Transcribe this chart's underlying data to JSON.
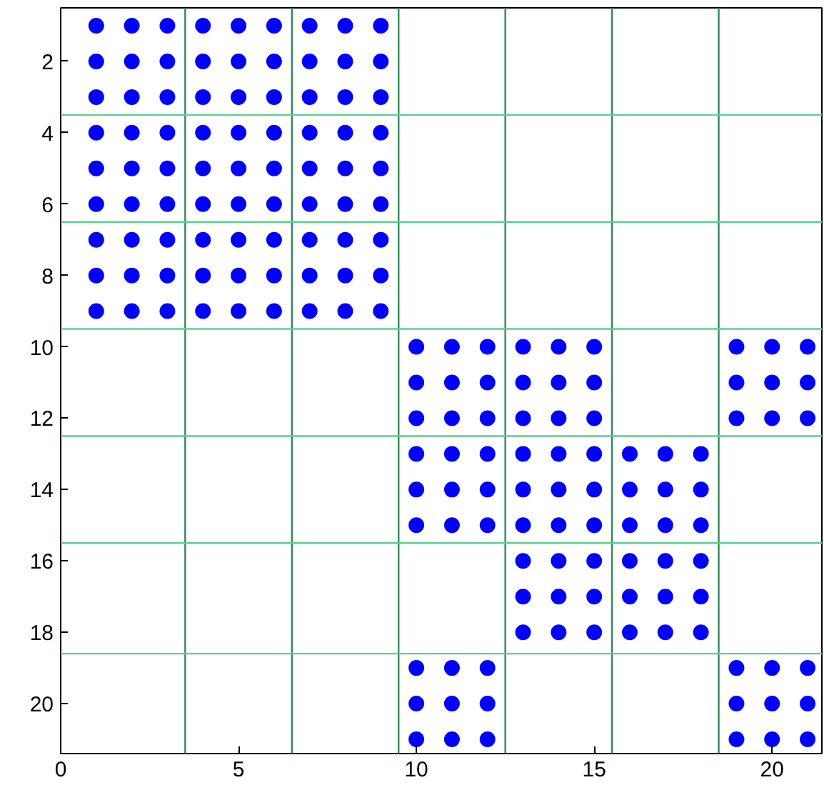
{
  "chart_data": {
    "type": "scatter",
    "marker": "circle",
    "grid": false,
    "xlim": [
      0,
      21.4
    ],
    "ylim": [
      21.4,
      0.5
    ],
    "xticks": [
      0,
      5,
      10,
      15,
      20
    ],
    "yticks": [
      2,
      4,
      6,
      8,
      10,
      12,
      14,
      16,
      18,
      20
    ],
    "series": [
      {
        "color": "#0000ff",
        "x": [
          1,
          2,
          3,
          4,
          5,
          6,
          7,
          8,
          9
        ],
        "values": [
          1,
          1,
          1,
          1,
          1,
          1,
          1,
          1,
          1
        ]
      },
      {
        "color": "#0000ff",
        "x": [
          1,
          2,
          3,
          4,
          5,
          6,
          7,
          8,
          9
        ],
        "values": [
          2,
          2,
          2,
          2,
          2,
          2,
          2,
          2,
          2
        ]
      },
      {
        "color": "#0000ff",
        "x": [
          1,
          2,
          3,
          4,
          5,
          6,
          7,
          8,
          9
        ],
        "values": [
          3,
          3,
          3,
          3,
          3,
          3,
          3,
          3,
          3
        ]
      },
      {
        "color": "#0000ff",
        "x": [
          1,
          2,
          3,
          4,
          5,
          6,
          7,
          8,
          9
        ],
        "values": [
          4,
          4,
          4,
          4,
          4,
          4,
          4,
          4,
          4
        ]
      },
      {
        "color": "#0000ff",
        "x": [
          1,
          2,
          3,
          4,
          5,
          6,
          7,
          8,
          9
        ],
        "values": [
          5,
          5,
          5,
          5,
          5,
          5,
          5,
          5,
          5
        ]
      },
      {
        "color": "#0000ff",
        "x": [
          1,
          2,
          3,
          4,
          5,
          6,
          7,
          8,
          9
        ],
        "values": [
          6,
          6,
          6,
          6,
          6,
          6,
          6,
          6,
          6
        ]
      },
      {
        "color": "#0000ff",
        "x": [
          1,
          2,
          3,
          4,
          5,
          6,
          7,
          8,
          9
        ],
        "values": [
          7,
          7,
          7,
          7,
          7,
          7,
          7,
          7,
          7
        ]
      },
      {
        "color": "#0000ff",
        "x": [
          1,
          2,
          3,
          4,
          5,
          6,
          7,
          8,
          9
        ],
        "values": [
          8,
          8,
          8,
          8,
          8,
          8,
          8,
          8,
          8
        ]
      },
      {
        "color": "#0000ff",
        "x": [
          1,
          2,
          3,
          4,
          5,
          6,
          7,
          8,
          9
        ],
        "values": [
          9,
          9,
          9,
          9,
          9,
          9,
          9,
          9,
          9
        ]
      },
      {
        "color": "#0000ff",
        "x": [
          10,
          11,
          12,
          13,
          14,
          15,
          19,
          20,
          21
        ],
        "values": [
          10,
          10,
          10,
          10,
          10,
          10,
          10,
          10,
          10
        ]
      },
      {
        "color": "#0000ff",
        "x": [
          10,
          11,
          12,
          13,
          14,
          15,
          19,
          20,
          21
        ],
        "values": [
          11,
          11,
          11,
          11,
          11,
          11,
          11,
          11,
          11
        ]
      },
      {
        "color": "#0000ff",
        "x": [
          10,
          11,
          12,
          13,
          14,
          15,
          19,
          20,
          21
        ],
        "values": [
          12,
          12,
          12,
          12,
          12,
          12,
          12,
          12,
          12
        ]
      },
      {
        "color": "#0000ff",
        "x": [
          10,
          11,
          12,
          13,
          14,
          15,
          16,
          17,
          18
        ],
        "values": [
          13,
          13,
          13,
          13,
          13,
          13,
          13,
          13,
          13
        ]
      },
      {
        "color": "#0000ff",
        "x": [
          10,
          11,
          12,
          13,
          14,
          15,
          16,
          17,
          18
        ],
        "values": [
          14,
          14,
          14,
          14,
          14,
          14,
          14,
          14,
          14
        ]
      },
      {
        "color": "#0000ff",
        "x": [
          10,
          11,
          12,
          13,
          14,
          15,
          16,
          17,
          18
        ],
        "values": [
          15,
          15,
          15,
          15,
          15,
          15,
          15,
          15,
          15
        ]
      },
      {
        "color": "#0000ff",
        "x": [
          13,
          14,
          15,
          16,
          17,
          18
        ],
        "values": [
          16,
          16,
          16,
          16,
          16,
          16
        ]
      },
      {
        "color": "#0000ff",
        "x": [
          13,
          14,
          15,
          16,
          17,
          18
        ],
        "values": [
          17,
          17,
          17,
          17,
          17,
          17
        ]
      },
      {
        "color": "#0000ff",
        "x": [
          13,
          14,
          15,
          16,
          17,
          18
        ],
        "values": [
          18,
          18,
          18,
          18,
          18,
          18
        ]
      },
      {
        "color": "#0000ff",
        "x": [
          10,
          11,
          12,
          19,
          20,
          21
        ],
        "values": [
          19,
          19,
          19,
          19,
          19,
          19
        ]
      },
      {
        "color": "#0000ff",
        "x": [
          10,
          11,
          12,
          19,
          20,
          21
        ],
        "values": [
          20,
          20,
          20,
          20,
          20,
          20
        ]
      },
      {
        "color": "#0000ff",
        "x": [
          10,
          11,
          12,
          19,
          20,
          21
        ],
        "values": [
          21,
          21,
          21,
          21,
          21,
          21
        ]
      }
    ],
    "ref_lines": [
      {
        "axis": "x",
        "value": 3.5,
        "color": "#2e8b57"
      },
      {
        "axis": "x",
        "value": 6.5,
        "color": "#2e8b57"
      },
      {
        "axis": "x",
        "value": 9.5,
        "color": "#2e8b57"
      },
      {
        "axis": "x",
        "value": 12.5,
        "color": "#2e8b57"
      },
      {
        "axis": "x",
        "value": 15.5,
        "color": "#2e8b57"
      },
      {
        "axis": "x",
        "value": 18.5,
        "color": "#2e8b57"
      },
      {
        "axis": "y",
        "value": 3.5,
        "color": "#5fcf8f"
      },
      {
        "axis": "y",
        "value": 6.5,
        "color": "#5fcf8f"
      },
      {
        "axis": "y",
        "value": 9.5,
        "color": "#5fcf8f"
      },
      {
        "axis": "y",
        "value": 12.5,
        "color": "#5fcf8f"
      },
      {
        "axis": "y",
        "value": 15.5,
        "color": "#5fcf8f"
      },
      {
        "axis": "y",
        "value": 18.6,
        "color": "#5fcf8f"
      }
    ]
  }
}
